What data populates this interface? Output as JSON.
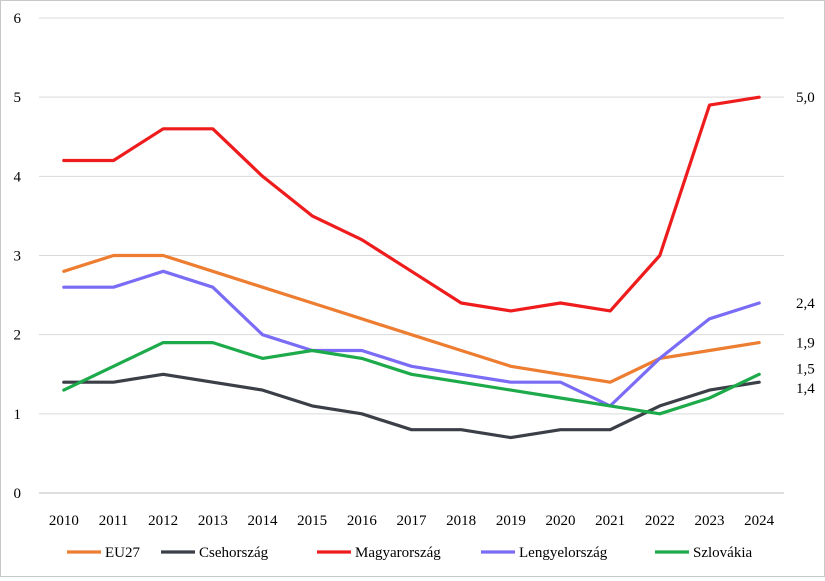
{
  "chart_data": {
    "type": "line",
    "title": "",
    "xlabel": "",
    "ylabel": "",
    "x": [
      "2010",
      "2011",
      "2012",
      "2013",
      "2014",
      "2015",
      "2016",
      "2017",
      "2018",
      "2019",
      "2020",
      "2021",
      "2022",
      "2023",
      "2024"
    ],
    "ylim": [
      0,
      6
    ],
    "yticks": [
      "0",
      "1",
      "2",
      "3",
      "4",
      "5",
      "6"
    ],
    "grid": "horizontal",
    "legend_position": "bottom",
    "series": [
      {
        "name": "EU27",
        "color": "#ED7D31",
        "values": [
          2.8,
          3.0,
          3.0,
          2.8,
          2.6,
          2.4,
          2.2,
          2.0,
          1.8,
          1.6,
          1.5,
          1.4,
          1.7,
          1.8,
          1.9
        ],
        "end_label": "1,9"
      },
      {
        "name": "Csehország",
        "color": "#3B3F47",
        "values": [
          1.4,
          1.4,
          1.5,
          1.4,
          1.3,
          1.1,
          1.0,
          0.8,
          0.8,
          0.7,
          0.8,
          0.8,
          1.1,
          1.3,
          1.4
        ],
        "end_label": "1,4"
      },
      {
        "name": "Magyarország",
        "color": "#EE1C1C",
        "values": [
          4.2,
          4.2,
          4.6,
          4.6,
          4.0,
          3.5,
          3.2,
          2.8,
          2.4,
          2.3,
          2.4,
          2.3,
          3.0,
          4.9,
          5.0
        ],
        "end_label": "5,0"
      },
      {
        "name": "Lengyelország",
        "color": "#7B6CF6",
        "values": [
          2.6,
          2.6,
          2.8,
          2.6,
          2.0,
          1.8,
          1.8,
          1.6,
          1.5,
          1.4,
          1.4,
          1.1,
          1.7,
          2.2,
          2.4
        ],
        "end_label": "2,4"
      },
      {
        "name": "Szlovákia",
        "color": "#1DAA4A",
        "values": [
          1.3,
          1.6,
          1.9,
          1.9,
          1.7,
          1.8,
          1.7,
          1.5,
          1.4,
          1.3,
          1.2,
          1.1,
          1.0,
          1.2,
          1.5
        ],
        "end_label": "1,5"
      }
    ]
  }
}
